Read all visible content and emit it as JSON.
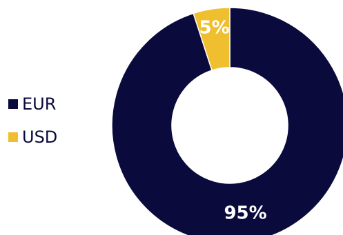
{
  "chart_data": {
    "type": "pie",
    "variant": "donut",
    "title": "",
    "categories": [
      "EUR",
      "USD"
    ],
    "values": [
      95,
      5
    ],
    "data_labels": [
      "95%",
      "5%"
    ],
    "colors": [
      "#0a0a3c",
      "#f0bf2f"
    ],
    "legend_placement": "left",
    "start_angle_deg": 0,
    "direction": "clockwise"
  }
}
